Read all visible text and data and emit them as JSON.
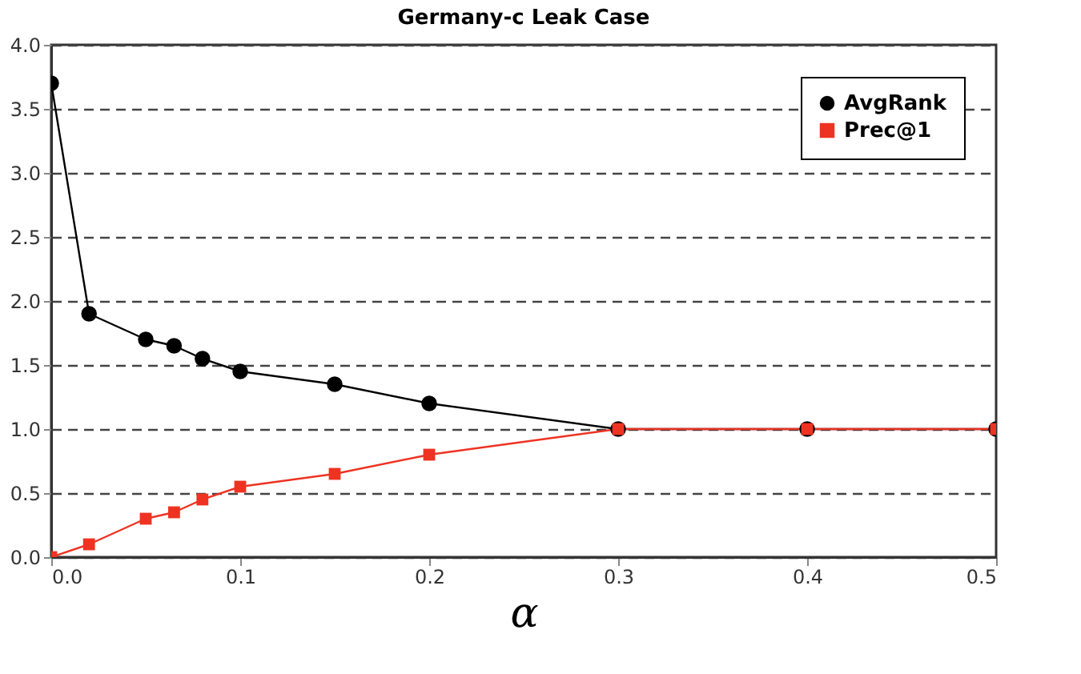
{
  "chart_data": {
    "type": "line",
    "title": "Germany-c Leak Case",
    "xlabel": "α",
    "x": [
      0,
      0.02,
      0.05,
      0.065,
      0.08,
      0.1,
      0.15,
      0.2,
      0.3,
      0.4,
      0.5
    ],
    "series": [
      {
        "name": "AvgRank",
        "color": "#000000",
        "marker": "circle",
        "values": [
          3.7,
          1.9,
          1.7,
          1.65,
          1.55,
          1.45,
          1.35,
          1.2,
          1.0,
          1.0,
          1.0
        ]
      },
      {
        "name": "Prec@1",
        "color": "#ee3322",
        "marker": "square",
        "values": [
          0,
          0.1,
          0.3,
          0.35,
          0.45,
          0.55,
          0.65,
          0.8,
          1.0,
          1.0,
          1.0
        ]
      }
    ],
    "xlim": [
      0,
      0.5
    ],
    "xticks": [
      {
        "value": 0,
        "label": "0.0"
      },
      0.1,
      0.2,
      0.3,
      0.4,
      0.5
    ],
    "ylim": [
      0,
      4
    ],
    "yticks": [
      {
        "value": 0,
        "label": "0.0"
      },
      {
        "value": 0.5,
        "label": "0.5"
      },
      {
        "value": 1,
        "label": "1.0"
      },
      {
        "value": 1.5,
        "label": "1.5"
      },
      {
        "value": 2,
        "label": "2.0"
      },
      {
        "value": 2.5,
        "label": "2.5"
      },
      {
        "value": 3,
        "label": "3.0"
      },
      {
        "value": 3.5,
        "label": "3.5"
      },
      {
        "value": 4,
        "label": "4.0"
      }
    ],
    "grid": "y",
    "legend": "top right",
    "line_style": "solid"
  }
}
